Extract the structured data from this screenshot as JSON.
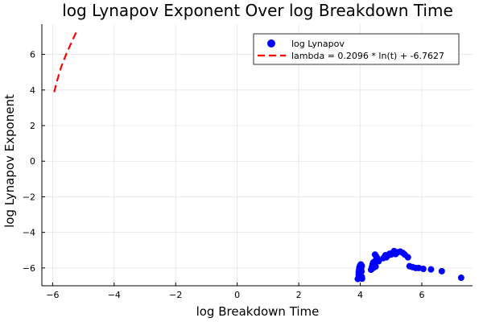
{
  "chart_data": {
    "type": "scatter",
    "title": "log Lynapov Exponent Over log Breakdown Time",
    "xlabel": "log Breakdown Time",
    "ylabel": "log Lynapov Exponent",
    "xlim": [
      -6.35,
      7.65
    ],
    "ylim": [
      -7.0,
      7.7
    ],
    "xticks": [
      -6,
      -4,
      -2,
      0,
      2,
      4,
      6
    ],
    "yticks": [
      -6,
      -4,
      -2,
      0,
      2,
      4,
      6
    ],
    "grid": true,
    "legend_position": "top-right",
    "series": [
      {
        "name": "log Lynapov",
        "kind": "scatter",
        "color": "#0000ff",
        "points": [
          [
            3.92,
            -6.62
          ],
          [
            3.95,
            -6.52
          ],
          [
            3.95,
            -6.38
          ],
          [
            3.95,
            -6.25
          ],
          [
            3.96,
            -6.12
          ],
          [
            3.97,
            -6.0
          ],
          [
            3.98,
            -5.93
          ],
          [
            4.0,
            -5.85
          ],
          [
            4.02,
            -5.8
          ],
          [
            4.03,
            -6.05
          ],
          [
            4.05,
            -6.5
          ],
          [
            4.06,
            -6.6
          ],
          [
            4.04,
            -6.2
          ],
          [
            4.0,
            -6.3
          ],
          [
            3.98,
            -6.45
          ],
          [
            4.02,
            -5.95
          ],
          [
            4.05,
            -5.88
          ],
          [
            4.35,
            -6.1
          ],
          [
            4.38,
            -5.95
          ],
          [
            4.4,
            -5.8
          ],
          [
            4.42,
            -5.7
          ],
          [
            4.45,
            -5.65
          ],
          [
            4.47,
            -5.78
          ],
          [
            4.5,
            -5.92
          ],
          [
            4.52,
            -5.55
          ],
          [
            4.55,
            -5.45
          ],
          [
            4.6,
            -5.62
          ],
          [
            4.42,
            -6.0
          ],
          [
            4.48,
            -5.25
          ],
          [
            4.52,
            -5.35
          ],
          [
            4.75,
            -5.45
          ],
          [
            4.8,
            -5.35
          ],
          [
            4.82,
            -5.28
          ],
          [
            4.85,
            -5.4
          ],
          [
            4.9,
            -5.3
          ],
          [
            4.95,
            -5.2
          ],
          [
            5.0,
            -5.25
          ],
          [
            5.05,
            -5.15
          ],
          [
            5.1,
            -5.05
          ],
          [
            5.15,
            -5.22
          ],
          [
            5.22,
            -5.12
          ],
          [
            5.3,
            -5.08
          ],
          [
            5.38,
            -5.15
          ],
          [
            5.45,
            -5.25
          ],
          [
            5.55,
            -5.4
          ],
          [
            5.6,
            -5.9
          ],
          [
            5.7,
            -5.95
          ],
          [
            5.8,
            -6.0
          ],
          [
            5.9,
            -6.0
          ],
          [
            6.05,
            -6.05
          ],
          [
            6.3,
            -6.08
          ],
          [
            6.65,
            -6.18
          ],
          [
            7.28,
            -6.55
          ]
        ]
      },
      {
        "name": "lambda = 0.2096 * ln(t) + -6.7627",
        "kind": "line",
        "style": "dashed",
        "color": "#ff0000",
        "points": [
          [
            -5.95,
            3.88
          ],
          [
            -5.85,
            4.55
          ],
          [
            -5.72,
            5.3
          ],
          [
            -5.55,
            6.05
          ],
          [
            -5.38,
            6.7
          ],
          [
            -5.22,
            7.3
          ]
        ]
      }
    ]
  }
}
